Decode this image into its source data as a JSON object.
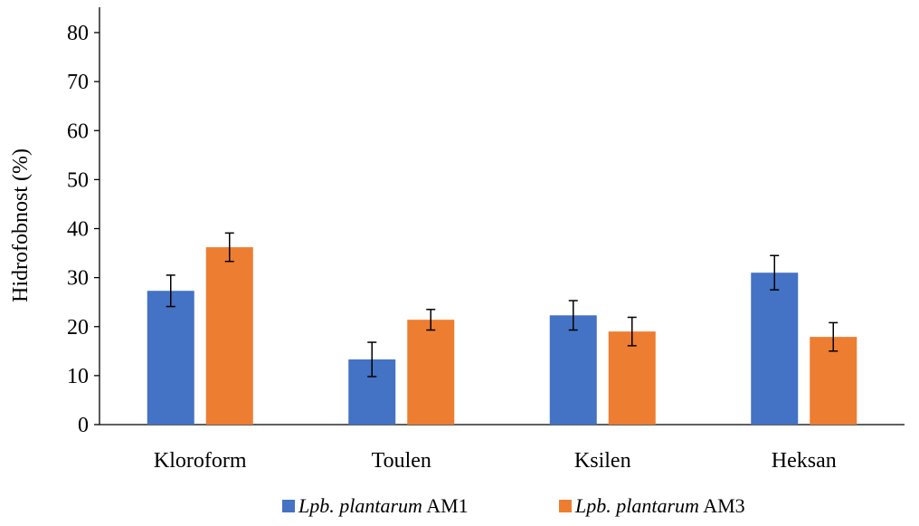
{
  "chart_data": {
    "type": "bar",
    "title": "",
    "xlabel": "",
    "ylabel": "Hidrofobnost (%)",
    "ylim": [
      0,
      80
    ],
    "yticks": [
      0,
      10,
      20,
      30,
      40,
      50,
      60,
      70,
      80
    ],
    "grid": false,
    "legend_position": "bottom",
    "categories": [
      "Kloroform",
      "Toulen",
      "Ksilen",
      "Heksan"
    ],
    "series": [
      {
        "name": "Lpb. plantarum AM1",
        "name_italic": "Lpb. plantarum",
        "name_suffix": " AM1",
        "color": "#4472C4",
        "values": [
          27.3,
          13.3,
          22.3,
          31.0
        ],
        "errors": [
          3.2,
          3.5,
          3.0,
          3.5
        ]
      },
      {
        "name": "Lpb. plantarum AM3",
        "name_italic": "Lpb. plantarum",
        "name_suffix": " AM3",
        "color": "#ED7D31",
        "values": [
          36.2,
          21.4,
          19.0,
          17.9
        ],
        "errors": [
          2.9,
          2.1,
          2.9,
          2.9
        ]
      }
    ]
  }
}
